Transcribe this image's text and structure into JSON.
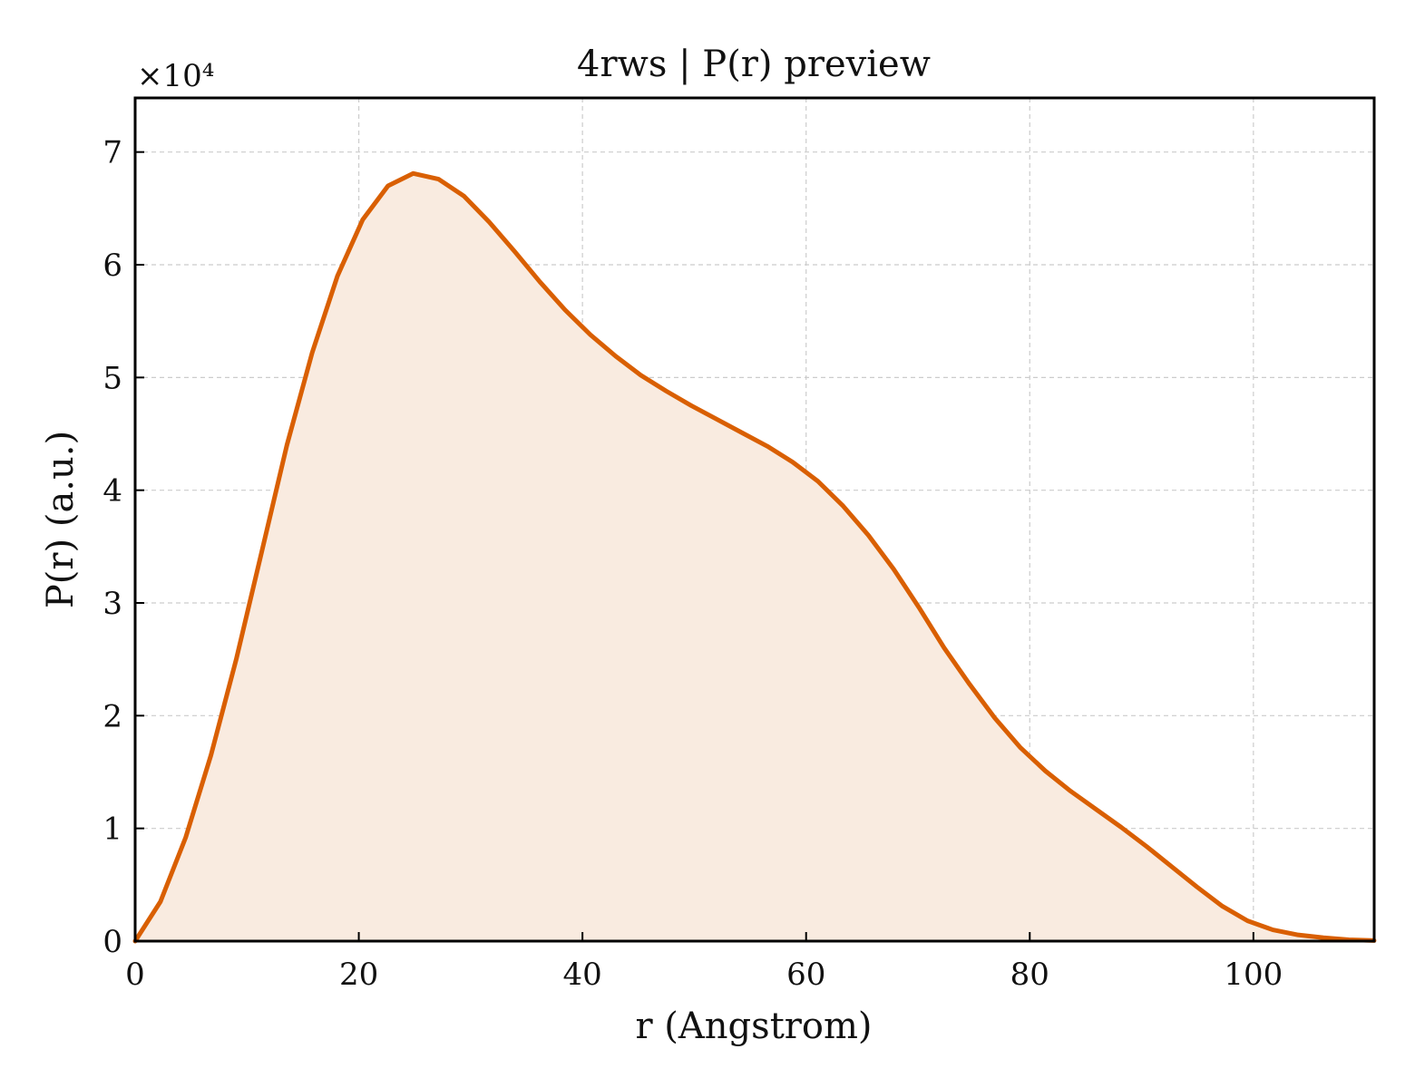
{
  "chart_data": {
    "type": "area",
    "title": "4rws | P(r) preview",
    "xlabel": "r (Angstrom)",
    "ylabel": "P(r) (a.u.)",
    "y_offset_label": "×10⁴",
    "xlim": [
      0,
      110.8
    ],
    "ylim": [
      0,
      74800
    ],
    "x_ticks": [
      0,
      20,
      40,
      60,
      80,
      100
    ],
    "x_tick_labels": [
      "0",
      "20",
      "40",
      "60",
      "80",
      "100"
    ],
    "y_ticks": [
      0,
      10000,
      20000,
      30000,
      40000,
      50000,
      60000,
      70000
    ],
    "y_tick_labels": [
      "0",
      "1",
      "2",
      "3",
      "4",
      "5",
      "6",
      "7"
    ],
    "grid": true,
    "legend": "none",
    "colors": {
      "line": "#d95f02",
      "fill": "#f9ebe0",
      "grid": "#cccccc",
      "axis": "#000000"
    },
    "series": [
      {
        "x": [
          0,
          2.26,
          4.52,
          6.78,
          9.04,
          11.31,
          13.57,
          15.83,
          18.09,
          20.35,
          22.61,
          24.87,
          27.13,
          29.39,
          31.65,
          33.92,
          36.18,
          38.44,
          40.7,
          42.96,
          45.22,
          47.48,
          49.74,
          52.0,
          54.26,
          56.53,
          58.79,
          61.05,
          63.31,
          65.57,
          67.83,
          70.09,
          72.35,
          74.61,
          76.87,
          79.13,
          81.39,
          83.66,
          85.92,
          88.18,
          90.44,
          92.7,
          94.96,
          97.22,
          99.48,
          101.74,
          104.0,
          106.27,
          108.53,
          110.79
        ],
        "y": [
          0,
          3500,
          9200,
          16500,
          25000,
          34500,
          44000,
          52200,
          59000,
          64000,
          67000,
          68100,
          67600,
          66100,
          63800,
          61200,
          58500,
          56000,
          53800,
          51900,
          50200,
          48800,
          47500,
          46300,
          45100,
          43900,
          42500,
          40800,
          38600,
          36000,
          33000,
          29600,
          26000,
          22800,
          19800,
          17200,
          15100,
          13300,
          11700,
          10100,
          8400,
          6600,
          4800,
          3100,
          1800,
          1000,
          550,
          300,
          120,
          50
        ]
      }
    ]
  }
}
